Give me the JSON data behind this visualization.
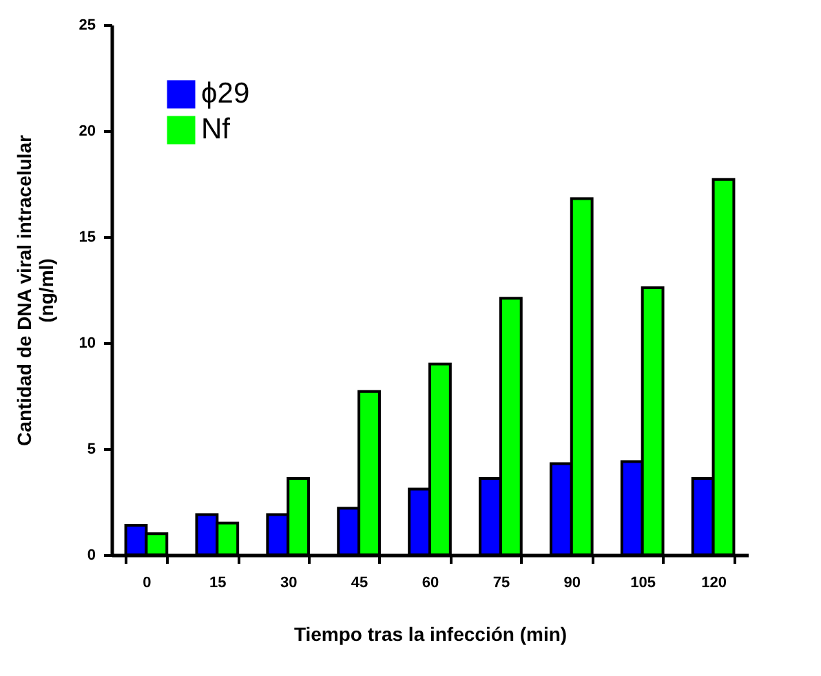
{
  "chart_data": {
    "type": "bar",
    "xlabel": "Tiempo tras la infección (min)",
    "ylabel": "Cantidad de DNA viral intracelular\n(ng/ml)",
    "categories": [
      "0",
      "15",
      "30",
      "45",
      "60",
      "75",
      "90",
      "105",
      "120"
    ],
    "series": [
      {
        "name": "ϕ29",
        "color": "#0000ff",
        "values": [
          1.4,
          1.9,
          1.9,
          2.2,
          3.1,
          3.6,
          4.3,
          4.4,
          3.6
        ]
      },
      {
        "name": "Nf",
        "color": "#00ff00",
        "values": [
          1.0,
          1.5,
          3.6,
          7.7,
          9.0,
          12.1,
          16.8,
          12.6,
          17.7
        ]
      }
    ],
    "ylim": [
      0,
      25
    ],
    "yticks": [
      0,
      5,
      10,
      15,
      20,
      25
    ],
    "legend": "top left"
  }
}
